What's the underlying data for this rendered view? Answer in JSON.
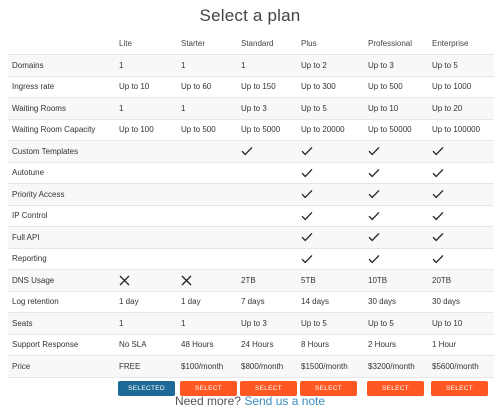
{
  "page": {
    "title": "Select a plan"
  },
  "plans": [
    "Lite",
    "Starter",
    "Standard",
    "Plus",
    "Professional",
    "Enterprise"
  ],
  "rows": [
    {
      "feature": "Domains",
      "values": [
        "1",
        "1",
        "1",
        "Up to 2",
        "Up to 3",
        "Up to 5"
      ]
    },
    {
      "feature": "Ingress rate",
      "values": [
        "Up to 10",
        "Up to 60",
        "Up to 150",
        "Up to 300",
        "Up to 500",
        "Up to 1000"
      ]
    },
    {
      "feature": "Waiting Rooms",
      "values": [
        "1",
        "1",
        "Up to 3",
        "Up to 5",
        "Up to 10",
        "Up to 20"
      ]
    },
    {
      "feature": "Waiting Room Capacity",
      "values": [
        "Up to 100",
        "Up to 500",
        "Up to 5000",
        "Up to 20000",
        "Up to 50000",
        "Up to 100000"
      ]
    },
    {
      "feature": "Custom Templates",
      "values": [
        "",
        "",
        "check",
        "check",
        "check",
        "check"
      ]
    },
    {
      "feature": "Autotune",
      "values": [
        "",
        "",
        "",
        "check",
        "check",
        "check"
      ]
    },
    {
      "feature": "Priority Access",
      "values": [
        "",
        "",
        "",
        "check",
        "check",
        "check"
      ]
    },
    {
      "feature": "IP Control",
      "values": [
        "",
        "",
        "",
        "check",
        "check",
        "check"
      ]
    },
    {
      "feature": "Full API",
      "values": [
        "",
        "",
        "",
        "check",
        "check",
        "check"
      ]
    },
    {
      "feature": "Reporting",
      "values": [
        "",
        "",
        "",
        "check",
        "check",
        "check"
      ]
    },
    {
      "feature": "DNS Usage",
      "values": [
        "cross",
        "cross",
        "2TB",
        "5TB",
        "10TB",
        "20TB"
      ]
    },
    {
      "feature": "Log retention",
      "values": [
        "1 day",
        "1 day",
        "7 days",
        "14 days",
        "30 days",
        "30 days"
      ]
    },
    {
      "feature": "Seats",
      "values": [
        "1",
        "1",
        "Up to 3",
        "Up to 5",
        "Up to 5",
        "Up to 10"
      ]
    },
    {
      "feature": "Support Response",
      "values": [
        "No SLA",
        "48 Hours",
        "24 Hours",
        "8 Hours",
        "2 Hours",
        "1 Hour"
      ]
    },
    {
      "feature": "Price",
      "values": [
        "FREE",
        "$100/month",
        "$800/month",
        "$1500/month",
        "$3200/month",
        "$5600/month"
      ]
    }
  ],
  "buttons": [
    {
      "label": "SELECTED",
      "state": "selected"
    },
    {
      "label": "SELECT",
      "state": "default"
    },
    {
      "label": "SELECT",
      "state": "default"
    },
    {
      "label": "SELECT",
      "state": "default"
    },
    {
      "label": "SELECT",
      "state": "default"
    },
    {
      "label": "SELECT",
      "state": "default"
    }
  ],
  "icons": {
    "check": "check-icon",
    "cross": "cross-icon"
  },
  "colors": {
    "select_button": "#ff5722",
    "selected_button": "#1d6a96",
    "link": "#3a8cbf"
  },
  "footer": {
    "prefix": "Need more?",
    "link_label": "Send us a note"
  }
}
